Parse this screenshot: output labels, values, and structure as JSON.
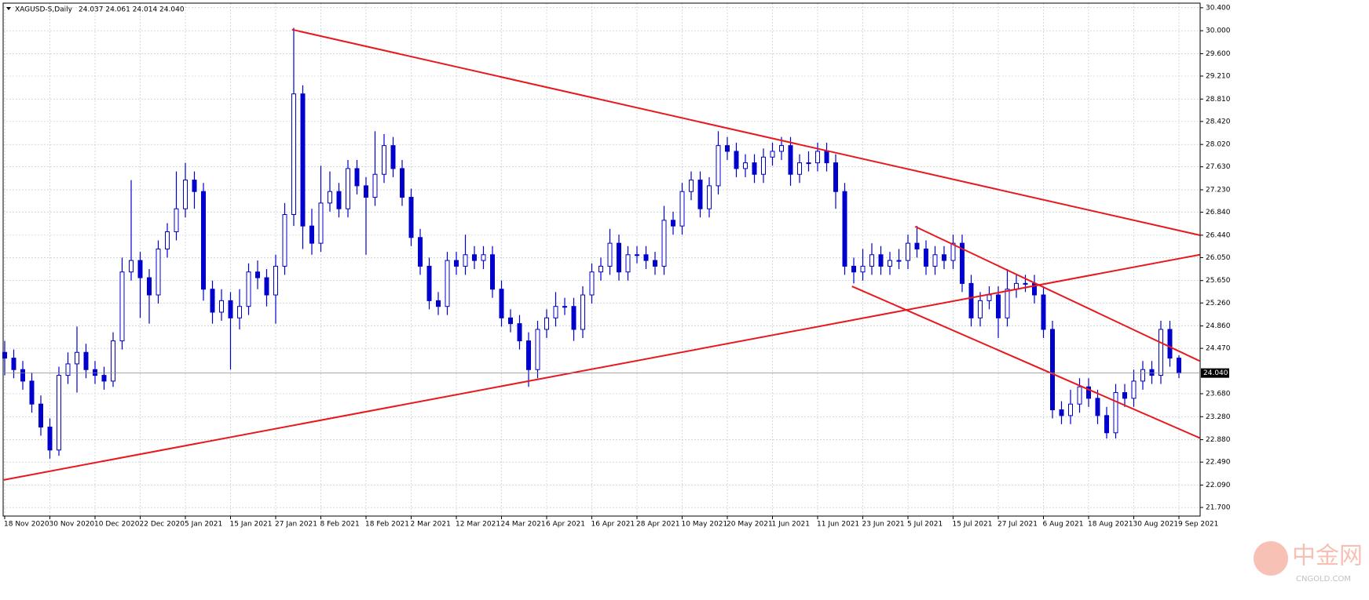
{
  "chart_data": {
    "type": "candlestick",
    "title": "XAGUSD-S,Daily",
    "ohlc_text": "24.037 24.061 24.014 24.040",
    "watermark": "中金网",
    "watermark_sub": "CNGOLD.COM",
    "categories": [
      "18 Nov 2020",
      null,
      null,
      null,
      null,
      "30 Nov 2020",
      null,
      null,
      null,
      null,
      "10 Dec 2020",
      null,
      null,
      null,
      null,
      "22 Dec 2020",
      null,
      null,
      null,
      null,
      "5 Jan 2021",
      null,
      null,
      null,
      null,
      "15 Jan 2021",
      null,
      null,
      null,
      null,
      "27 Jan 2021",
      null,
      null,
      null,
      null,
      "8 Feb 2021",
      null,
      null,
      null,
      null,
      "18 Feb 2021",
      null,
      null,
      null,
      null,
      "2 Mar 2021",
      null,
      null,
      null,
      null,
      "12 Mar 2021",
      null,
      null,
      null,
      null,
      "24 Mar 2021",
      null,
      null,
      null,
      null,
      "6 Apr 2021",
      null,
      null,
      null,
      null,
      "16 Apr 2021",
      null,
      null,
      null,
      null,
      "28 Apr 2021",
      null,
      null,
      null,
      null,
      "10 May 2021",
      null,
      null,
      null,
      null,
      "20 May 2021",
      null,
      null,
      null,
      null,
      "1 Jun 2021",
      null,
      null,
      null,
      null,
      "11 Jun 2021",
      null,
      null,
      null,
      null,
      "23 Jun 2021",
      null,
      null,
      null,
      null,
      "5 Jul 2021",
      null,
      null,
      null,
      null,
      "15 Jul 2021",
      null,
      null,
      null,
      null,
      "27 Jul 2021",
      null,
      null,
      null,
      null,
      "6 Aug 2021",
      null,
      null,
      null,
      null,
      "18 Aug 2021",
      null,
      null,
      null,
      null,
      "30 Aug 2021",
      null,
      null,
      null,
      null,
      "9 Sep 2021"
    ],
    "open": [
      24.4,
      24.3,
      24.1,
      23.9,
      23.5,
      23.1,
      22.7,
      24.0,
      24.2,
      24.4,
      24.1,
      24.0,
      23.9,
      24.6,
      25.8,
      26.0,
      25.7,
      25.4,
      26.2,
      26.5,
      26.9,
      27.4,
      27.2,
      25.5,
      25.1,
      25.3,
      25.0,
      25.2,
      25.8,
      25.7,
      25.4,
      25.9,
      26.8,
      28.9,
      26.6,
      26.3,
      27.0,
      27.2,
      26.9,
      27.6,
      27.3,
      27.1,
      27.5,
      28.0,
      27.6,
      27.1,
      26.4,
      25.9,
      25.3,
      25.2,
      26.0,
      25.9,
      26.1,
      26.0,
      26.1,
      25.5,
      25.0,
      24.9,
      24.6,
      24.1,
      24.8,
      25.0,
      25.2,
      25.2,
      24.8,
      25.4,
      25.8,
      25.9,
      26.3,
      25.8,
      26.1,
      26.1,
      26.0,
      25.9,
      26.7,
      26.6,
      27.2,
      27.4,
      26.9,
      27.3,
      28.0,
      27.9,
      27.6,
      27.7,
      27.5,
      27.8,
      27.9,
      28.0,
      27.5,
      27.7,
      27.7,
      27.9,
      27.7,
      27.2,
      25.9,
      25.8,
      25.9,
      26.1,
      25.9,
      26.0,
      26.0,
      26.3,
      26.2,
      25.9,
      26.1,
      26.0,
      26.3,
      25.6,
      25.0,
      25.3,
      25.4,
      25.0,
      25.5,
      25.6,
      25.6,
      25.4,
      24.8,
      23.4,
      23.3,
      23.5,
      23.8,
      23.6,
      23.3,
      23.0,
      23.7,
      23.6,
      23.9,
      24.1,
      24.0,
      24.8,
      24.3
    ],
    "high": [
      24.6,
      24.45,
      24.25,
      24.05,
      23.65,
      23.25,
      24.15,
      24.4,
      24.85,
      24.55,
      24.25,
      24.15,
      24.75,
      26.05,
      27.4,
      26.15,
      25.85,
      26.35,
      26.65,
      27.55,
      27.7,
      27.55,
      27.35,
      25.65,
      25.5,
      25.45,
      25.5,
      25.95,
      26.0,
      25.85,
      26.1,
      27.0,
      30.05,
      29.05,
      26.9,
      27.65,
      27.55,
      27.35,
      27.75,
      27.75,
      27.45,
      28.25,
      28.2,
      28.15,
      27.75,
      27.25,
      26.55,
      26.05,
      25.45,
      26.15,
      26.15,
      26.45,
      26.25,
      26.25,
      26.25,
      25.65,
      25.15,
      25.05,
      24.75,
      24.95,
      25.15,
      25.45,
      25.35,
      25.35,
      25.55,
      25.95,
      26.05,
      26.55,
      26.45,
      26.25,
      26.25,
      26.25,
      26.15,
      26.95,
      26.85,
      27.35,
      27.55,
      27.55,
      27.45,
      28.25,
      28.15,
      28.05,
      27.85,
      27.85,
      27.95,
      28.05,
      28.15,
      28.15,
      27.85,
      27.9,
      28.05,
      28.05,
      27.85,
      27.35,
      26.05,
      26.2,
      26.3,
      26.25,
      26.15,
      26.2,
      26.45,
      26.6,
      26.35,
      26.25,
      26.25,
      26.45,
      26.45,
      25.75,
      25.45,
      25.55,
      25.55,
      25.85,
      25.75,
      25.75,
      25.75,
      25.55,
      24.95,
      23.55,
      23.75,
      23.95,
      23.95,
      23.75,
      23.45,
      23.85,
      23.85,
      24.1,
      24.25,
      24.25,
      24.95,
      24.95,
      24.35
    ],
    "low": [
      24.0,
      23.95,
      23.75,
      23.35,
      22.95,
      22.55,
      22.6,
      23.85,
      23.7,
      23.95,
      23.85,
      23.75,
      23.8,
      24.45,
      25.65,
      25.0,
      24.9,
      25.25,
      26.05,
      26.35,
      26.75,
      26.9,
      25.3,
      24.9,
      24.95,
      24.1,
      24.8,
      25.05,
      25.5,
      25.2,
      24.9,
      25.75,
      26.6,
      26.2,
      26.1,
      26.15,
      26.85,
      26.75,
      26.75,
      27.15,
      26.1,
      26.95,
      27.35,
      27.45,
      26.95,
      26.25,
      25.75,
      25.15,
      25.05,
      25.05,
      25.75,
      25.75,
      25.85,
      25.85,
      25.35,
      24.85,
      24.75,
      24.45,
      23.8,
      23.95,
      24.65,
      24.85,
      25.05,
      24.6,
      24.65,
      25.25,
      25.65,
      25.75,
      25.65,
      25.65,
      25.95,
      25.85,
      25.75,
      25.75,
      26.45,
      26.45,
      27.05,
      26.75,
      26.75,
      27.15,
      27.75,
      27.45,
      27.45,
      27.35,
      27.35,
      27.65,
      27.75,
      27.3,
      27.35,
      27.55,
      27.55,
      27.55,
      26.9,
      25.75,
      25.6,
      25.65,
      25.75,
      25.75,
      25.75,
      25.85,
      25.85,
      26.05,
      25.75,
      25.75,
      25.85,
      25.85,
      25.45,
      24.85,
      24.85,
      25.15,
      24.65,
      24.85,
      25.35,
      25.45,
      25.25,
      24.65,
      23.25,
      23.15,
      23.15,
      23.35,
      23.45,
      23.15,
      22.9,
      22.9,
      23.45,
      23.45,
      23.75,
      23.85,
      23.85,
      24.15,
      23.95
    ],
    "close": [
      24.3,
      24.1,
      23.9,
      23.5,
      23.1,
      22.7,
      24.0,
      24.2,
      24.4,
      24.1,
      24.0,
      23.9,
      24.6,
      25.8,
      26.0,
      25.7,
      25.4,
      26.2,
      26.5,
      26.9,
      27.4,
      27.2,
      25.5,
      25.1,
      25.3,
      25.0,
      25.2,
      25.8,
      25.7,
      25.4,
      25.9,
      26.8,
      28.9,
      26.6,
      26.3,
      27.0,
      27.2,
      26.9,
      27.6,
      27.3,
      27.1,
      27.5,
      28.0,
      27.6,
      27.1,
      26.4,
      25.9,
      25.3,
      25.2,
      26.0,
      25.9,
      26.1,
      26.0,
      26.1,
      25.5,
      25.0,
      24.9,
      24.6,
      24.1,
      24.8,
      25.0,
      25.2,
      25.2,
      24.8,
      25.4,
      25.8,
      25.9,
      26.3,
      25.8,
      26.1,
      26.1,
      26.0,
      25.9,
      26.7,
      26.6,
      27.2,
      27.4,
      26.9,
      27.3,
      28.0,
      27.9,
      27.6,
      27.7,
      27.5,
      27.8,
      27.9,
      28.0,
      27.5,
      27.7,
      27.7,
      27.9,
      27.7,
      27.2,
      25.9,
      25.8,
      25.9,
      26.1,
      25.9,
      26.0,
      26.0,
      26.3,
      26.2,
      25.9,
      26.1,
      26.0,
      26.3,
      25.6,
      25.0,
      25.3,
      25.4,
      25.0,
      25.5,
      25.6,
      25.6,
      25.4,
      24.8,
      23.4,
      23.3,
      23.5,
      23.8,
      23.6,
      23.3,
      23.0,
      23.7,
      23.6,
      23.9,
      24.1,
      24.0,
      24.8,
      24.3,
      24.04
    ],
    "color": "#0000cc",
    "ylim": [
      21.55,
      30.48
    ],
    "yticks": [
      {
        "value": 30.4,
        "label": "30.400"
      },
      {
        "value": 30.0,
        "label": "30.000"
      },
      {
        "value": 29.6,
        "label": "29.600"
      },
      {
        "value": 29.21,
        "label": "29.210"
      },
      {
        "value": 28.81,
        "label": "28.810"
      },
      {
        "value": 28.42,
        "label": "28.420"
      },
      {
        "value": 28.02,
        "label": "28.020"
      },
      {
        "value": 27.63,
        "label": "27.630"
      },
      {
        "value": 27.23,
        "label": "27.230"
      },
      {
        "value": 26.84,
        "label": "26.840"
      },
      {
        "value": 26.44,
        "label": "26.440"
      },
      {
        "value": 26.05,
        "label": "26.050"
      },
      {
        "value": 25.65,
        "label": "25.650"
      },
      {
        "value": 25.26,
        "label": "25.260"
      },
      {
        "value": 24.86,
        "label": "24.860"
      },
      {
        "value": 24.47,
        "label": "24.470"
      },
      {
        "value": 23.68,
        "label": "23.680"
      },
      {
        "value": 23.28,
        "label": "23.280"
      },
      {
        "value": 22.88,
        "label": "22.880"
      },
      {
        "value": 22.49,
        "label": "22.490"
      },
      {
        "value": 22.09,
        "label": "22.090"
      },
      {
        "value": 21.7,
        "label": "21.700"
      }
    ],
    "last_price": {
      "value": 24.04,
      "label": "24.040"
    },
    "grid": true,
    "trendlines": [
      {
        "color": "#e8191e",
        "x": [
          31.8,
          132.3
        ],
        "y": [
          30.02,
          26.44
        ]
      },
      {
        "color": "#e8191e",
        "x": [
          -0.1,
          132.3
        ],
        "y": [
          22.18,
          26.1
        ]
      },
      {
        "color": "#e8191e",
        "x": [
          100.8,
          132.3
        ],
        "y": [
          26.59,
          24.25
        ]
      },
      {
        "color": "#e8191e",
        "x": [
          93.8,
          132.3
        ],
        "y": [
          25.55,
          22.91
        ]
      }
    ]
  }
}
